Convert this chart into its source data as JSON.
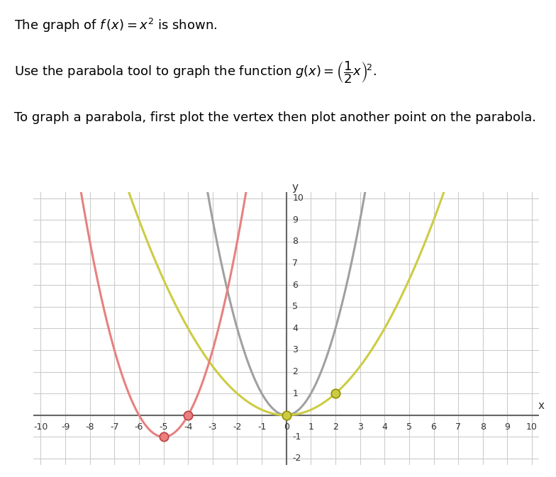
{
  "xlim": [
    -10,
    10
  ],
  "ylim": [
    -2,
    10
  ],
  "xticks": [
    -10,
    -9,
    -8,
    -7,
    -6,
    -5,
    -4,
    -3,
    -2,
    -1,
    0,
    1,
    2,
    3,
    4,
    5,
    6,
    7,
    8,
    9,
    10
  ],
  "yticks": [
    -2,
    -1,
    0,
    1,
    2,
    3,
    4,
    5,
    6,
    7,
    8,
    9,
    10
  ],
  "gray_color": "#a0a0a0",
  "yellow_color": "#cccc44",
  "pink_color": "#e88080",
  "grid_color": "#cccccc",
  "panel_bg": "#f0f0f0",
  "white_bg": "#ffffff",
  "header_color": "#b52020",
  "border_color": "#b52020",
  "marker_yv": [
    0,
    0
  ],
  "marker_yp": [
    2,
    1
  ],
  "marker_pv": [
    -5,
    -1
  ],
  "marker_pp": [
    -4,
    0
  ],
  "line1": "The graph of $\\mathit{f}\\,(x) = x^2$ is shown.",
  "line2": "Use the parabola tool to graph the function $g(x) = \\left(\\dfrac{1}{2}x\\right)^{\\!2}$.",
  "line3": "To graph a parabola, first plot the vertex then plot another point on the parabola."
}
